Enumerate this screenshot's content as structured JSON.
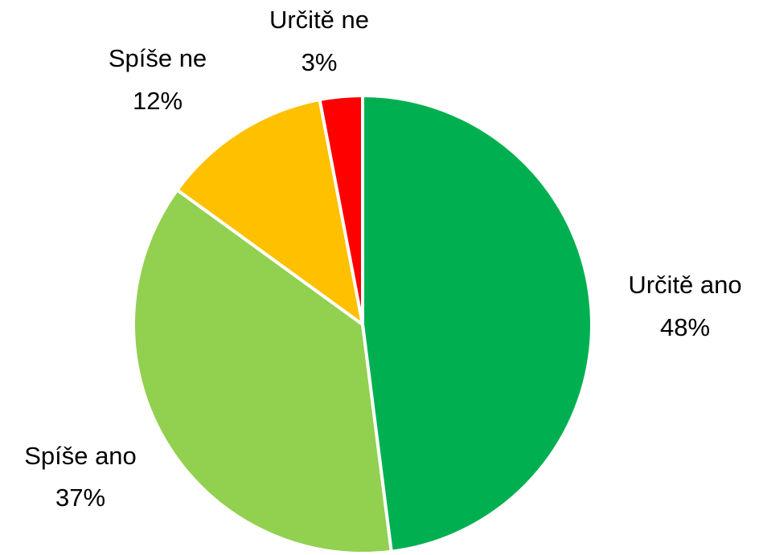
{
  "chart_data": {
    "type": "pie",
    "categories": [
      "Určitě ano",
      "Spíše ano",
      "Spíše ne",
      "Určitě ne"
    ],
    "values": [
      48,
      37,
      12,
      3
    ],
    "value_labels": [
      "48%",
      "37%",
      "12%",
      "3%"
    ],
    "colors": [
      "#00b050",
      "#92d050",
      "#ffc000",
      "#ff0000"
    ]
  }
}
